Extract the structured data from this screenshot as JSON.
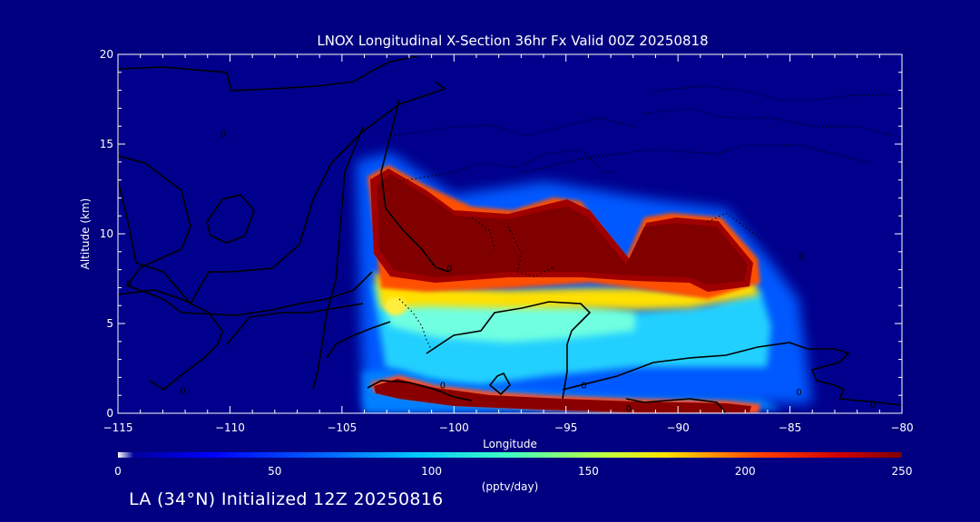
{
  "chart_data": {
    "type": "heatmap",
    "title": "LNOX Longitudinal X-Section 36hr  Fx Valid 00Z 20250818",
    "xlabel": "Longitude",
    "ylabel": "Altitude (km)",
    "xlim": [
      -115,
      -80
    ],
    "ylim": [
      0,
      20
    ],
    "x_ticks": [
      -115,
      -110,
      -105,
      -100,
      -95,
      -90,
      -85,
      -80
    ],
    "x_tick_labels": [
      "−115",
      "−110",
      "−105",
      "−100",
      "−95",
      "−90",
      "−85",
      "−80"
    ],
    "y_ticks": [
      0,
      5,
      10,
      15,
      20
    ],
    "y_tick_labels": [
      "0",
      "5",
      "10",
      "15",
      "20"
    ],
    "colorbar": {
      "min": 0,
      "max": 250,
      "units": "(pptv/day)",
      "ticks": [
        0,
        50,
        100,
        150,
        200,
        250
      ],
      "tick_labels": [
        "0",
        "50",
        "100",
        "150",
        "200",
        "250"
      ]
    },
    "contour_labels": [
      {
        "text": "0",
        "lon": -110.3,
        "alt": 15.6
      },
      {
        "text": "0",
        "lon": -114.5,
        "alt": 7.3
      },
      {
        "text": "0",
        "lon": -112.1,
        "alt": 1.3
      },
      {
        "text": "0",
        "lon": -100.2,
        "alt": 8.1
      },
      {
        "text": "0",
        "lon": -100.5,
        "alt": 1.6
      },
      {
        "text": "0",
        "lon": -92.2,
        "alt": 0.3
      },
      {
        "text": "0",
        "lon": -84.6,
        "alt": 1.2
      },
      {
        "text": "0",
        "lon": -81.3,
        "alt": 0.5
      },
      {
        "text": "0",
        "lon": -84.5,
        "alt": 8.8
      },
      {
        "text": "0",
        "lon": -94.2,
        "alt": 1.6
      }
    ],
    "features": [
      {
        "name": "upper-maximum",
        "value": 250,
        "lon_range": [
          -103.5,
          -86.7
        ],
        "alt_range": [
          6.5,
          13.5
        ]
      },
      {
        "name": "mid-level-band",
        "value": 110,
        "lon_range": [
          -103.5,
          -86.0
        ],
        "alt_range": [
          3.0,
          6.5
        ]
      },
      {
        "name": "surface-maximum",
        "value": 250,
        "lon_range": [
          -103.5,
          -86.5
        ],
        "alt_range": [
          0.0,
          2.0
        ]
      }
    ]
  },
  "footer": {
    "caption": "LA (34°N) Initialized 12Z 20250816"
  }
}
